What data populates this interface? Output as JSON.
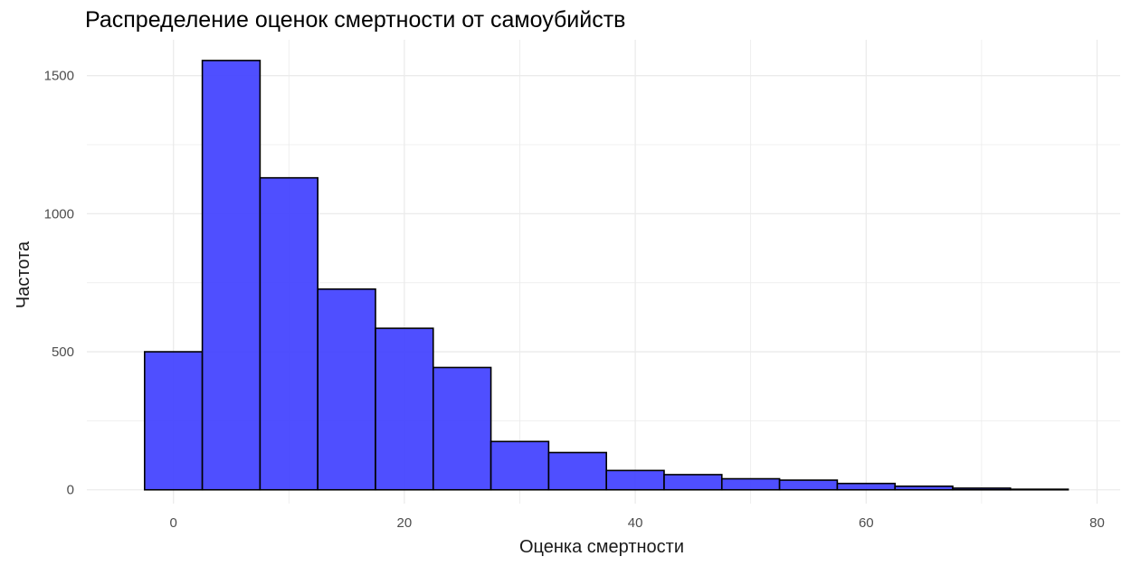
{
  "chart_data": {
    "type": "bar",
    "title": "Распределение оценок смертности от самоубийств",
    "xlabel": "Оценка смертности",
    "ylabel": "Частота",
    "bin_width": 5,
    "bins": [
      {
        "x0": -2.5,
        "x1": 2.5,
        "count": 500
      },
      {
        "x0": 2.5,
        "x1": 7.5,
        "count": 1555
      },
      {
        "x0": 7.5,
        "x1": 12.5,
        "count": 1130
      },
      {
        "x0": 12.5,
        "x1": 17.5,
        "count": 727
      },
      {
        "x0": 17.5,
        "x1": 22.5,
        "count": 585
      },
      {
        "x0": 22.5,
        "x1": 27.5,
        "count": 443
      },
      {
        "x0": 27.5,
        "x1": 32.5,
        "count": 175
      },
      {
        "x0": 32.5,
        "x1": 37.5,
        "count": 135
      },
      {
        "x0": 37.5,
        "x1": 42.5,
        "count": 70
      },
      {
        "x0": 42.5,
        "x1": 47.5,
        "count": 55
      },
      {
        "x0": 47.5,
        "x1": 52.5,
        "count": 40
      },
      {
        "x0": 52.5,
        "x1": 57.5,
        "count": 35
      },
      {
        "x0": 57.5,
        "x1": 62.5,
        "count": 23
      },
      {
        "x0": 62.5,
        "x1": 67.5,
        "count": 13
      },
      {
        "x0": 67.5,
        "x1": 72.5,
        "count": 6
      },
      {
        "x0": 72.5,
        "x1": 77.5,
        "count": 2
      }
    ],
    "xlim": [
      -7.5,
      82
    ],
    "ylim": [
      -50,
      1630
    ],
    "x_ticks": [
      0,
      20,
      40,
      60,
      80
    ],
    "y_ticks": [
      0,
      500,
      1000,
      1500
    ],
    "grid": true,
    "colors": {
      "bar_fill": "#4646ff",
      "bar_stroke": "#000000",
      "grid": "#ebebeb",
      "tick_text": "#4d4d4d"
    }
  }
}
